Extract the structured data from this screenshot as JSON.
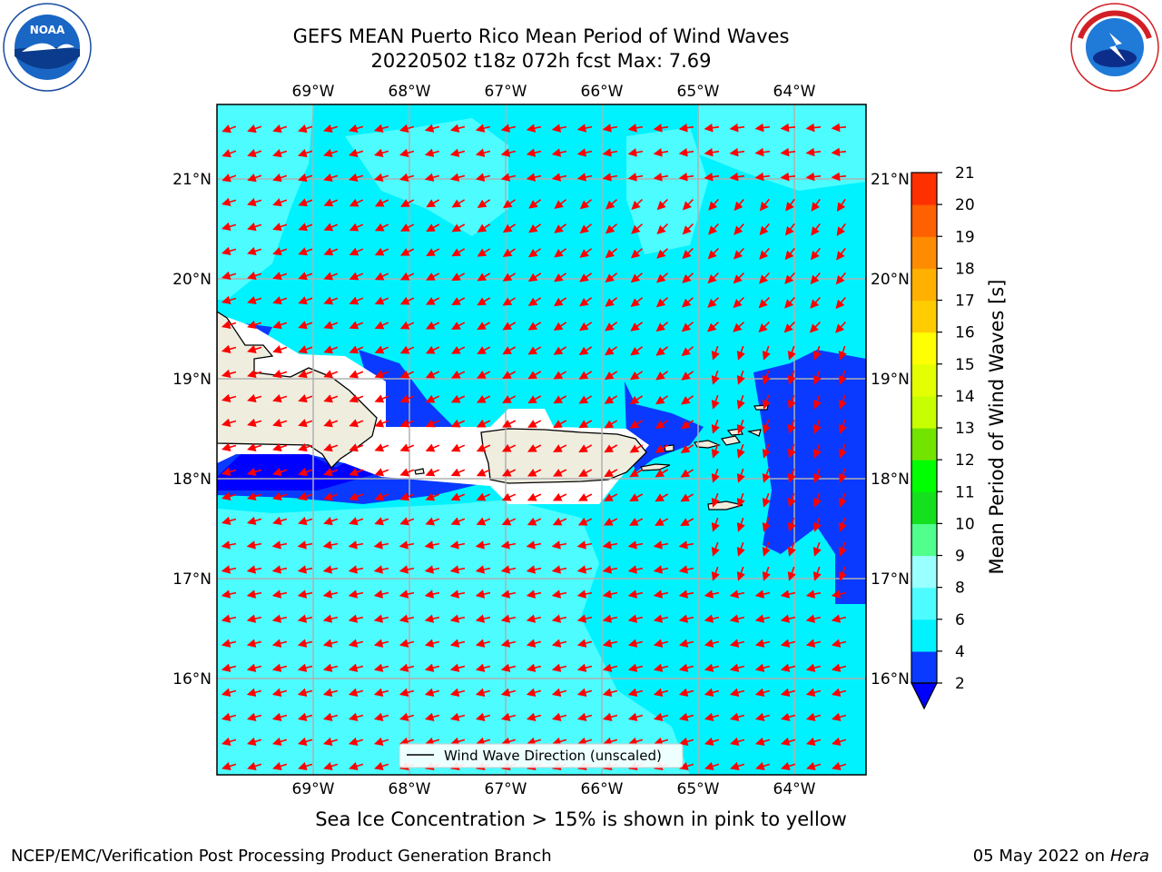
{
  "title": {
    "line1": "GEFS MEAN Puerto Rico Mean Period of Wind Waves",
    "line2": "20220502 t18z 072h fcst   Max: 7.69"
  },
  "map": {
    "lon_labels": [
      "69°W",
      "68°W",
      "67°W",
      "66°W",
      "65°W",
      "64°W"
    ],
    "lat_labels": [
      "16°N",
      "17°N",
      "18°N",
      "19°N",
      "20°N",
      "21°N"
    ],
    "legend_label": "Wind Wave Direction (unscaled)",
    "arrow_color": "#ff0000",
    "land_color": "#efedde"
  },
  "colorbar": {
    "label": "Mean Period of Wind Waves [s]",
    "ticks": [
      "2",
      "4",
      "6",
      "8",
      "9",
      "10",
      "11",
      "12",
      "13",
      "14",
      "15",
      "16",
      "17",
      "18",
      "19",
      "20",
      "21"
    ],
    "colors": [
      "#0a3aff",
      "#00f2ff",
      "#4dfcff",
      "#99ffff",
      "#50ff8c",
      "#14e01e",
      "#00ff00",
      "#72e400",
      "#c8ff00",
      "#e4ff00",
      "#ffff00",
      "#ffcc00",
      "#ffb000",
      "#ff8c00",
      "#ff6000",
      "#ff3000",
      "#ff0000"
    ],
    "underflow_color": "#0000ff"
  },
  "subtitle": "Sea Ice Concentration > 15% is shown in pink to yellow",
  "footer": {
    "left": "NCEP/EMC/Verification Post Processing Product Generation Branch",
    "date": "05 May 2022 on",
    "host": "Hera"
  }
}
